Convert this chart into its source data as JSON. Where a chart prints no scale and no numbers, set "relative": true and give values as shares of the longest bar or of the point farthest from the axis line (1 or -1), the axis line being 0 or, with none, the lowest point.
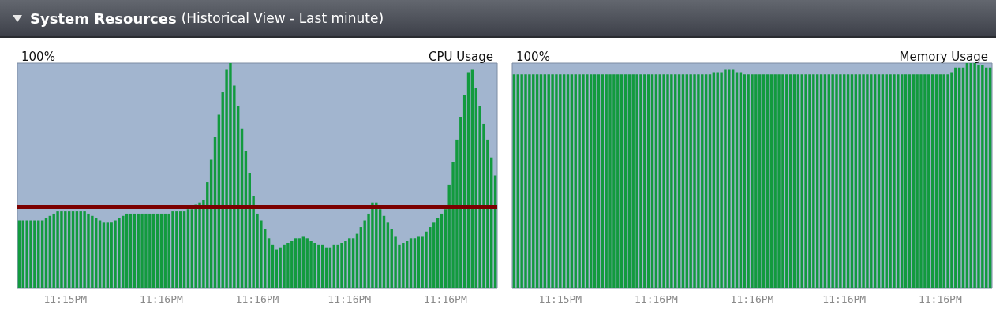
{
  "chart_data": [
    {
      "type": "other",
      "title": "System Resources",
      "subtitle": "(Historical View - Last minute)"
    },
    {
      "type": "bar",
      "title": "CPU Usage",
      "annotations": [
        "100%"
      ],
      "relative": true,
      "color": "#129a3e",
      "categories": [
        null,
        null,
        null,
        null,
        null,
        null,
        null,
        null,
        null,
        null,
        null,
        null,
        "11:15PM",
        null,
        null,
        null,
        null,
        null,
        null,
        null,
        null,
        null,
        null,
        null,
        null,
        null,
        null,
        null,
        null,
        null,
        null,
        null,
        null,
        null,
        null,
        null,
        null,
        "11:16PM",
        null,
        null,
        null,
        null,
        null,
        null,
        null,
        null,
        null,
        null,
        null,
        null,
        null,
        null,
        null,
        null,
        null,
        null,
        null,
        null,
        null,
        null,
        null,
        null,
        "11:16PM",
        null,
        null,
        null,
        null,
        null,
        null,
        null,
        null,
        null,
        null,
        null,
        null,
        null,
        null,
        null,
        null,
        null,
        null,
        null,
        null,
        null,
        null,
        null,
        "11:16PM",
        null,
        null,
        null,
        null,
        null,
        null,
        null,
        null,
        null,
        null,
        null,
        null,
        null,
        null,
        null,
        null,
        null,
        null,
        null,
        null,
        null,
        null,
        null,
        null,
        "11:16PM",
        null,
        null,
        null,
        null,
        null,
        null,
        null,
        null,
        null,
        null,
        null,
        null,
        null
      ],
      "values": [
        0.3,
        0.3,
        0.3,
        0.3,
        0.3,
        0.3,
        0.3,
        0.31,
        0.32,
        0.33,
        0.34,
        0.34,
        0.34,
        0.34,
        0.34,
        0.34,
        0.34,
        0.34,
        0.33,
        0.32,
        0.31,
        0.3,
        0.29,
        0.29,
        0.29,
        0.3,
        0.31,
        0.32,
        0.33,
        0.33,
        0.33,
        0.33,
        0.33,
        0.33,
        0.33,
        0.33,
        0.33,
        0.33,
        0.33,
        0.33,
        0.34,
        0.34,
        0.34,
        0.34,
        0.35,
        0.35,
        0.37,
        0.38,
        0.39,
        0.47,
        0.57,
        0.67,
        0.77,
        0.87,
        0.97,
        1,
        0.9,
        0.81,
        0.71,
        0.61,
        0.51,
        0.41,
        0.33,
        0.3,
        0.26,
        0.22,
        0.19,
        0.17,
        0.18,
        0.19,
        0.2,
        0.21,
        0.22,
        0.22,
        0.23,
        0.22,
        0.21,
        0.2,
        0.19,
        0.19,
        0.18,
        0.18,
        0.19,
        0.19,
        0.2,
        0.21,
        0.22,
        0.22,
        0.24,
        0.27,
        0.3,
        0.33,
        0.38,
        0.38,
        0.35,
        0.32,
        0.29,
        0.26,
        0.23,
        0.19,
        0.2,
        0.21,
        0.22,
        0.22,
        0.23,
        0.23,
        0.25,
        0.27,
        0.29,
        0.31,
        0.33,
        0.35,
        0.46,
        0.56,
        0.66,
        0.76,
        0.86,
        0.96,
        0.97,
        0.89,
        0.81,
        0.73,
        0.66,
        0.58,
        0.5
      ],
      "ref_lines": [
        {
          "axis": "y",
          "value": 0.36,
          "color": "#7b0000"
        }
      ]
    },
    {
      "type": "bar",
      "title": "Memory Usage",
      "annotations": [
        "100%"
      ],
      "relative": true,
      "color": "#129a3e",
      "categories": [
        null,
        null,
        null,
        null,
        null,
        null,
        null,
        null,
        null,
        null,
        null,
        null,
        "11:15PM",
        null,
        null,
        null,
        null,
        null,
        null,
        null,
        null,
        null,
        null,
        null,
        null,
        null,
        null,
        null,
        null,
        null,
        null,
        null,
        null,
        null,
        null,
        null,
        null,
        "11:16PM",
        null,
        null,
        null,
        null,
        null,
        null,
        null,
        null,
        null,
        null,
        null,
        null,
        null,
        null,
        null,
        null,
        null,
        null,
        null,
        null,
        null,
        null,
        null,
        null,
        "11:16PM",
        null,
        null,
        null,
        null,
        null,
        null,
        null,
        null,
        null,
        null,
        null,
        null,
        null,
        null,
        null,
        null,
        null,
        null,
        null,
        null,
        null,
        null,
        null,
        "11:16PM",
        null,
        null,
        null,
        null,
        null,
        null,
        null,
        null,
        null,
        null,
        null,
        null,
        null,
        null,
        null,
        null,
        null,
        null,
        null,
        null,
        null,
        null,
        null,
        null,
        "11:16PM",
        null,
        null,
        null,
        null,
        null,
        null,
        null,
        null,
        null,
        null,
        null,
        null,
        null
      ],
      "values": [
        0.95,
        0.95,
        0.95,
        0.95,
        0.95,
        0.95,
        0.95,
        0.95,
        0.95,
        0.95,
        0.95,
        0.95,
        0.95,
        0.95,
        0.95,
        0.95,
        0.95,
        0.95,
        0.95,
        0.95,
        0.95,
        0.95,
        0.95,
        0.95,
        0.95,
        0.95,
        0.95,
        0.95,
        0.95,
        0.95,
        0.95,
        0.95,
        0.95,
        0.95,
        0.95,
        0.95,
        0.95,
        0.95,
        0.95,
        0.95,
        0.95,
        0.95,
        0.95,
        0.95,
        0.95,
        0.95,
        0.95,
        0.95,
        0.95,
        0.95,
        0.95,
        0.95,
        0.96,
        0.96,
        0.96,
        0.97,
        0.97,
        0.97,
        0.96,
        0.96,
        0.95,
        0.95,
        0.95,
        0.95,
        0.95,
        0.95,
        0.95,
        0.95,
        0.95,
        0.95,
        0.95,
        0.95,
        0.95,
        0.95,
        0.95,
        0.95,
        0.95,
        0.95,
        0.95,
        0.95,
        0.95,
        0.95,
        0.95,
        0.95,
        0.95,
        0.95,
        0.95,
        0.95,
        0.95,
        0.95,
        0.95,
        0.95,
        0.95,
        0.95,
        0.95,
        0.95,
        0.95,
        0.95,
        0.95,
        0.95,
        0.95,
        0.95,
        0.95,
        0.95,
        0.95,
        0.95,
        0.95,
        0.95,
        0.95,
        0.95,
        0.95,
        0.95,
        0.95,
        0.95,
        0.96,
        0.98,
        0.98,
        0.98,
        1,
        1,
        1,
        0.99,
        0.99,
        0.98,
        0.98
      ]
    }
  ]
}
